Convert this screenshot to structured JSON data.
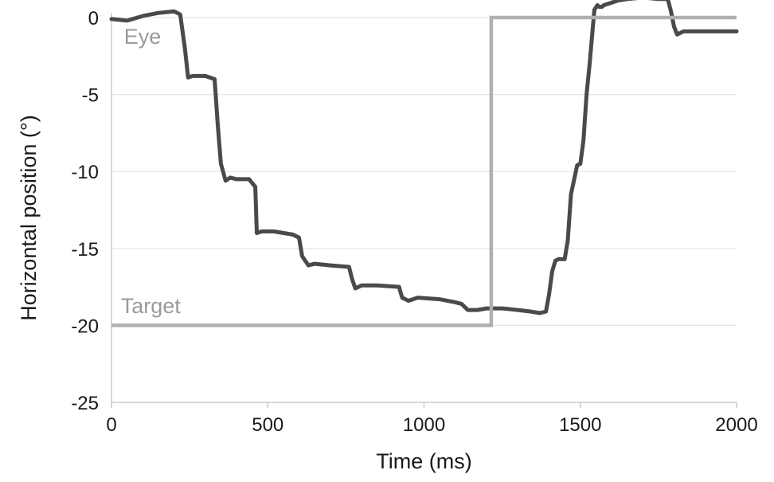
{
  "chart_data": {
    "type": "line",
    "xlabel": "Time (ms)",
    "ylabel": "Horizontal position (°)",
    "xlim": [
      0,
      2000
    ],
    "ylim": [
      -25,
      0
    ],
    "x_ticks": [
      0,
      500,
      1000,
      1500,
      2000
    ],
    "y_ticks": [
      0,
      -5,
      -10,
      -15,
      -20,
      -25
    ],
    "grid": "horizontal",
    "series": [
      {
        "name": "Eye",
        "color": "#4a4a4a",
        "x": [
          0,
          50,
          100,
          150,
          200,
          220,
          235,
          245,
          260,
          300,
          330,
          340,
          350,
          365,
          380,
          400,
          440,
          460,
          465,
          480,
          520,
          580,
          600,
          610,
          630,
          650,
          700,
          760,
          770,
          780,
          800,
          850,
          920,
          930,
          950,
          980,
          1050,
          1100,
          1120,
          1140,
          1170,
          1200,
          1250,
          1300,
          1340,
          1370,
          1390,
          1400,
          1410,
          1420,
          1430,
          1450,
          1460,
          1470,
          1490,
          1500,
          1510,
          1520,
          1530,
          1545,
          1555,
          1560,
          1570,
          1575,
          1590,
          1620,
          1650,
          1700,
          1750,
          1780,
          1790,
          1800,
          1810,
          1830,
          1900,
          2000
        ],
        "y": [
          -0.1,
          -0.2,
          0.1,
          0.3,
          0.4,
          0.2,
          -2.0,
          -3.9,
          -3.8,
          -3.8,
          -4.0,
          -7.0,
          -9.5,
          -10.6,
          -10.4,
          -10.5,
          -10.5,
          -11.0,
          -14.0,
          -13.9,
          -13.9,
          -14.1,
          -14.3,
          -15.5,
          -16.1,
          -16.0,
          -16.1,
          -16.2,
          -17.0,
          -17.6,
          -17.4,
          -17.4,
          -17.5,
          -18.2,
          -18.4,
          -18.2,
          -18.3,
          -18.5,
          -18.6,
          -19.0,
          -19.0,
          -18.9,
          -18.9,
          -19.0,
          -19.1,
          -19.2,
          -19.1,
          -18.0,
          -16.5,
          -15.8,
          -15.7,
          -15.7,
          -14.5,
          -11.5,
          -9.6,
          -9.5,
          -8.0,
          -5.0,
          -3.0,
          0.5,
          0.8,
          0.7,
          0.7,
          0.8,
          0.9,
          1.1,
          1.2,
          1.3,
          1.2,
          1.2,
          0.4,
          -0.6,
          -1.1,
          -0.9,
          -0.9,
          -0.9
        ]
      },
      {
        "name": "Target",
        "color": "#b0b0b0",
        "x": [
          0,
          1215,
          1215,
          2000
        ],
        "y": [
          -20,
          -20,
          0,
          0
        ]
      }
    ]
  }
}
